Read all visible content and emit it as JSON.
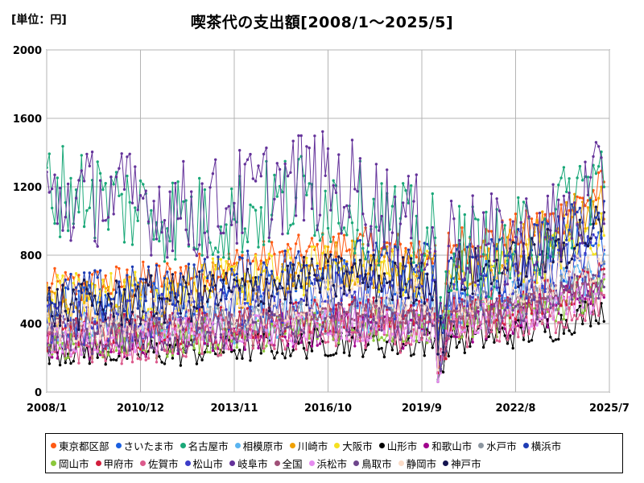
{
  "unit_label": "[単位：円]",
  "chart_data": {
    "type": "line",
    "title": "喫茶代の支出額[2008/1～2025/5]",
    "xlabel": "",
    "ylabel": "",
    "ylim": [
      0,
      2000
    ],
    "yticks": [
      0,
      400,
      800,
      1200,
      1600,
      2000
    ],
    "xlim": [
      "2008/1",
      "2025/7"
    ],
    "xticks": [
      "2008/1",
      "2010/12",
      "2013/11",
      "2016/10",
      "2019/9",
      "2022/8",
      "2025/7"
    ],
    "grid": true,
    "legend_position": "bottom",
    "series": [
      {
        "name": "東京都区部",
        "color": "#ff5a14",
        "base": [
          600,
          620,
          650,
          700,
          760,
          800,
          850,
          820,
          860,
          900,
          1000,
          1200
        ],
        "amp": 120
      },
      {
        "name": "さいたま市",
        "color": "#1a5fe0",
        "base": [
          450,
          470,
          500,
          540,
          580,
          600,
          620,
          600,
          640,
          680,
          760,
          900
        ],
        "amp": 160
      },
      {
        "name": "名古屋市",
        "color": "#1aa878",
        "base": [
          1200,
          1150,
          1050,
          1000,
          1050,
          1150,
          1100,
          950,
          850,
          800,
          1000,
          1300
        ],
        "amp": 280
      },
      {
        "name": "相模原市",
        "color": "#5ab4f0",
        "base": [
          330,
          350,
          370,
          400,
          420,
          440,
          460,
          440,
          460,
          500,
          580,
          700
        ],
        "amp": 130
      },
      {
        "name": "川崎市",
        "color": "#f0a000",
        "base": [
          500,
          520,
          560,
          600,
          650,
          700,
          760,
          720,
          740,
          800,
          950,
          1100
        ],
        "amp": 150
      },
      {
        "name": "大阪市",
        "color": "#f5e020",
        "base": [
          550,
          560,
          580,
          620,
          660,
          700,
          740,
          700,
          700,
          720,
          820,
          950
        ],
        "amp": 150
      },
      {
        "name": "山形市",
        "color": "#000000",
        "base": [
          250,
          240,
          230,
          240,
          260,
          280,
          300,
          280,
          300,
          330,
          380,
          500
        ],
        "amp": 90
      },
      {
        "name": "和歌山市",
        "color": "#a0008c",
        "base": [
          300,
          300,
          310,
          320,
          340,
          360,
          380,
          360,
          380,
          420,
          480,
          600
        ],
        "amp": 110
      },
      {
        "name": "水戸市",
        "color": "#8c96a0",
        "base": [
          380,
          380,
          390,
          400,
          420,
          440,
          460,
          440,
          460,
          500,
          560,
          680
        ],
        "amp": 110
      },
      {
        "name": "横浜市",
        "color": "#1e3cb4",
        "base": [
          550,
          570,
          600,
          640,
          680,
          720,
          760,
          720,
          760,
          800,
          900,
          1050
        ],
        "amp": 150
      },
      {
        "name": "岡山市",
        "color": "#8cc83c",
        "base": [
          280,
          290,
          300,
          320,
          340,
          370,
          400,
          380,
          400,
          430,
          500,
          620
        ],
        "amp": 110
      },
      {
        "name": "甲府市",
        "color": "#d21e3c",
        "base": [
          350,
          350,
          360,
          380,
          400,
          430,
          460,
          440,
          460,
          500,
          560,
          680
        ],
        "amp": 110
      },
      {
        "name": "佐賀市",
        "color": "#dc5a8c",
        "base": [
          260,
          260,
          270,
          290,
          310,
          330,
          350,
          330,
          350,
          380,
          430,
          540
        ],
        "amp": 100
      },
      {
        "name": "松山市",
        "color": "#3c3cc8",
        "base": [
          400,
          410,
          430,
          460,
          500,
          540,
          580,
          560,
          580,
          620,
          700,
          820
        ],
        "amp": 140
      },
      {
        "name": "岐阜市",
        "color": "#64329a",
        "base": [
          1100,
          1150,
          1100,
          1050,
          1150,
          1250,
          1200,
          1000,
          900,
          850,
          950,
          1200
        ],
        "amp": 300
      },
      {
        "name": "全国",
        "color": "#a05078",
        "base": [
          380,
          385,
          395,
          410,
          430,
          450,
          470,
          450,
          470,
          500,
          560,
          660
        ],
        "amp": 50
      },
      {
        "name": "浜松市",
        "color": "#e68cf0",
        "base": [
          300,
          310,
          320,
          340,
          360,
          380,
          400,
          380,
          400,
          430,
          480,
          580
        ],
        "amp": 100
      },
      {
        "name": "鳥取市",
        "color": "#6e468c",
        "base": [
          320,
          320,
          330,
          350,
          370,
          400,
          430,
          410,
          430,
          470,
          540,
          660
        ],
        "amp": 110
      },
      {
        "name": "静岡市",
        "color": "#fadcc8",
        "base": [
          400,
          410,
          430,
          460,
          490,
          520,
          550,
          530,
          550,
          590,
          660,
          780
        ],
        "amp": 120
      },
      {
        "name": "神戸市",
        "color": "#141450",
        "base": [
          500,
          510,
          530,
          560,
          600,
          640,
          680,
          650,
          680,
          720,
          820,
          980
        ],
        "amp": 150
      }
    ]
  }
}
